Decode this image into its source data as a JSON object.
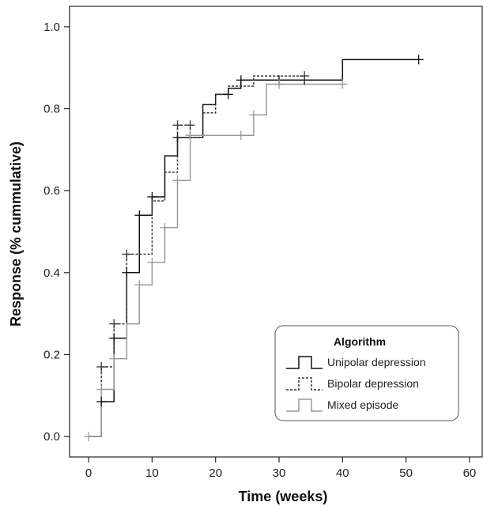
{
  "chart_data": {
    "type": "line",
    "step": true,
    "xlabel": "Time (weeks)",
    "ylabel": "Response (% cummulative)",
    "xlim": [
      -3,
      62
    ],
    "ylim": [
      -0.05,
      1.05
    ],
    "xticks": [
      0,
      10,
      20,
      30,
      40,
      50,
      60
    ],
    "yticks": [
      0.0,
      0.2,
      0.4,
      0.6,
      0.8,
      1.0
    ],
    "ytick_labels": [
      "0.0",
      "0.2",
      "0.4",
      "0.6",
      "0.8",
      "1.0"
    ],
    "grid": false,
    "legend": {
      "title": "Algorithm",
      "placement": "bottom-right"
    },
    "series": [
      {
        "name": "Unipolar depression",
        "color": "#111111",
        "dash": "solid",
        "points": [
          [
            0,
            0
          ],
          [
            2,
            0
          ],
          [
            2,
            0.085
          ],
          [
            4,
            0.085
          ],
          [
            4,
            0.24
          ],
          [
            6,
            0.24
          ],
          [
            6,
            0.4
          ],
          [
            8,
            0.4
          ],
          [
            8,
            0.54
          ],
          [
            10,
            0.54
          ],
          [
            10,
            0.585
          ],
          [
            12,
            0.585
          ],
          [
            12,
            0.685
          ],
          [
            14,
            0.685
          ],
          [
            14,
            0.73
          ],
          [
            18,
            0.73
          ],
          [
            18,
            0.81
          ],
          [
            20,
            0.81
          ],
          [
            20,
            0.835
          ],
          [
            22,
            0.835
          ],
          [
            22,
            0.85
          ],
          [
            24,
            0.85
          ],
          [
            24,
            0.87
          ],
          [
            40,
            0.87
          ],
          [
            40,
            0.92
          ],
          [
            52,
            0.92
          ]
        ],
        "censored": [
          [
            2,
            0.085
          ],
          [
            4,
            0.24
          ],
          [
            6,
            0.4
          ],
          [
            8,
            0.54
          ],
          [
            10,
            0.585
          ],
          [
            14,
            0.73
          ],
          [
            22,
            0.835
          ],
          [
            24,
            0.87
          ],
          [
            30,
            0.87
          ],
          [
            34,
            0.87
          ],
          [
            52,
            0.92
          ]
        ]
      },
      {
        "name": "Bipolar depression",
        "color": "#333333",
        "dash": "dashed",
        "points": [
          [
            0,
            0
          ],
          [
            2,
            0
          ],
          [
            2,
            0.17
          ],
          [
            4,
            0.17
          ],
          [
            4,
            0.275
          ],
          [
            6,
            0.275
          ],
          [
            6,
            0.445
          ],
          [
            10,
            0.445
          ],
          [
            10,
            0.575
          ],
          [
            12,
            0.575
          ],
          [
            12,
            0.645
          ],
          [
            14,
            0.645
          ],
          [
            14,
            0.76
          ],
          [
            16,
            0.76
          ],
          [
            16,
            0.73
          ],
          [
            18,
            0.73
          ],
          [
            18,
            0.79
          ],
          [
            20,
            0.79
          ],
          [
            20,
            0.835
          ],
          [
            22,
            0.835
          ],
          [
            22,
            0.855
          ],
          [
            26,
            0.855
          ],
          [
            26,
            0.88
          ],
          [
            34,
            0.88
          ]
        ],
        "censored": [
          [
            2,
            0.17
          ],
          [
            4,
            0.275
          ],
          [
            6,
            0.445
          ],
          [
            14,
            0.76
          ],
          [
            16,
            0.76
          ],
          [
            34,
            0.88
          ]
        ]
      },
      {
        "name": "Mixed episode",
        "color": "#999999",
        "dash": "solid",
        "points": [
          [
            0,
            0
          ],
          [
            2,
            0
          ],
          [
            2,
            0.115
          ],
          [
            4,
            0.115
          ],
          [
            4,
            0.19
          ],
          [
            6,
            0.19
          ],
          [
            6,
            0.275
          ],
          [
            8,
            0.275
          ],
          [
            8,
            0.37
          ],
          [
            10,
            0.37
          ],
          [
            10,
            0.425
          ],
          [
            12,
            0.425
          ],
          [
            12,
            0.51
          ],
          [
            14,
            0.51
          ],
          [
            14,
            0.625
          ],
          [
            16,
            0.625
          ],
          [
            16,
            0.735
          ],
          [
            26,
            0.735
          ],
          [
            26,
            0.785
          ],
          [
            28,
            0.785
          ],
          [
            28,
            0.86
          ],
          [
            40,
            0.86
          ]
        ],
        "censored": [
          [
            0,
            0
          ],
          [
            2,
            0.115
          ],
          [
            4,
            0.19
          ],
          [
            8,
            0.37
          ],
          [
            10,
            0.425
          ],
          [
            12,
            0.51
          ],
          [
            14,
            0.625
          ],
          [
            16,
            0.735
          ],
          [
            24,
            0.735
          ],
          [
            26,
            0.785
          ],
          [
            30,
            0.86
          ],
          [
            40,
            0.86
          ]
        ]
      }
    ]
  }
}
